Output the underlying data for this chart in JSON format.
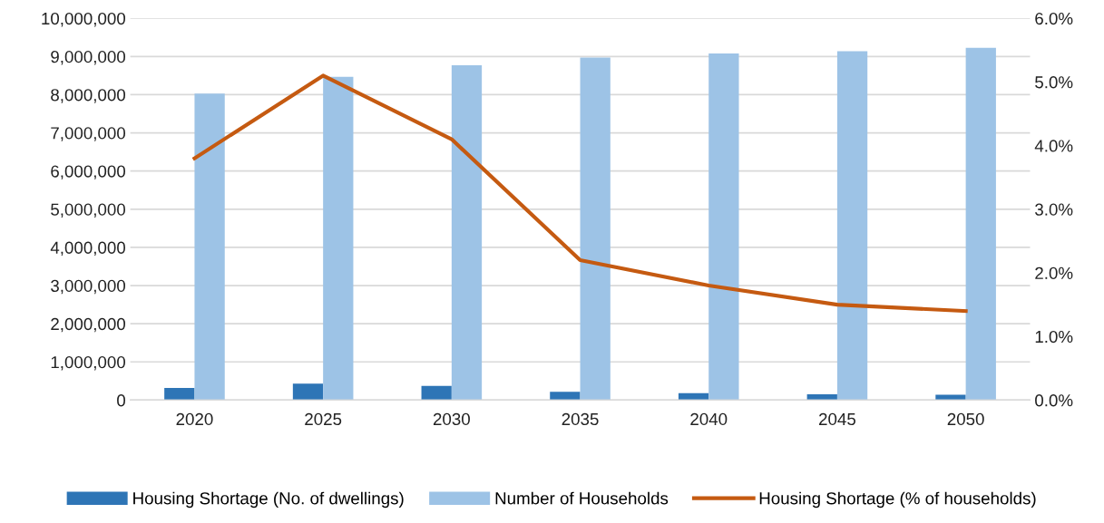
{
  "chart_data": {
    "type": "bar",
    "categories": [
      "2020",
      "2025",
      "2030",
      "2035",
      "2040",
      "2045",
      "2050"
    ],
    "series": [
      {
        "name": "Housing Shortage (No. of dwellings)",
        "color": "#2e75b6",
        "values": [
          320000,
          430000,
          370000,
          220000,
          180000,
          150000,
          140000
        ]
      },
      {
        "name": "Number of Households",
        "color": "#9dc3e6",
        "values": [
          8030000,
          8470000,
          8770000,
          8970000,
          9080000,
          9140000,
          9230000
        ]
      },
      {
        "name": "Housing Shortage (% of households)",
        "type": "line",
        "axis": "y2",
        "color": "#c55a11",
        "values": [
          3.8,
          5.1,
          4.1,
          2.2,
          1.8,
          1.5,
          1.4
        ]
      }
    ],
    "ylim": [
      0,
      10000000
    ],
    "yticks": [
      {
        "value": 0,
        "label": "0"
      },
      {
        "value": 1000000,
        "label": "1,000,000"
      },
      {
        "value": 2000000,
        "label": "2,000,000"
      },
      {
        "value": 3000000,
        "label": "3,000,000"
      },
      {
        "value": 4000000,
        "label": "4,000,000"
      },
      {
        "value": 5000000,
        "label": "5,000,000"
      },
      {
        "value": 6000000,
        "label": "6,000,000"
      },
      {
        "value": 7000000,
        "label": "7,000,000"
      },
      {
        "value": 8000000,
        "label": "8,000,000"
      },
      {
        "value": 9000000,
        "label": "9,000,000"
      },
      {
        "value": 10000000,
        "label": "10,000,000"
      }
    ],
    "y2lim": [
      0,
      6
    ],
    "y2ticks": [
      {
        "value": 0,
        "label": "0.0%"
      },
      {
        "value": 1,
        "label": "1.0%"
      },
      {
        "value": 2,
        "label": "2.0%"
      },
      {
        "value": 3,
        "label": "3.0%"
      },
      {
        "value": 4,
        "label": "4.0%"
      },
      {
        "value": 5,
        "label": "5.0%"
      },
      {
        "value": 6,
        "label": "6.0%"
      }
    ],
    "grid": "y",
    "legend": "bottom",
    "marker": "none",
    "line_style": "solid"
  }
}
